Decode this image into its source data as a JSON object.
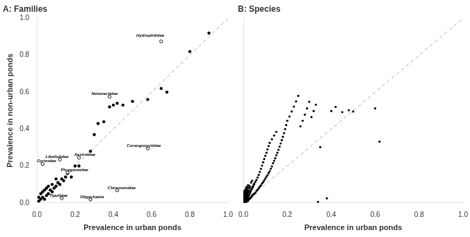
{
  "chart_data": [
    {
      "type": "scatter",
      "title": "A: Families",
      "xlabel": "Prevalence in urban ponds",
      "ylabel": "Prevalence in non-urban ponds",
      "xlim": [
        0,
        1.0
      ],
      "ylim": [
        0,
        1.0
      ],
      "xticks": [
        {
          "value": 0.0,
          "label": "0.0"
        },
        0.2,
        0.4,
        0.6,
        0.8,
        {
          "value": 1.0,
          "label": "1.0"
        }
      ],
      "yticks": [
        {
          "value": 0.0,
          "label": "0.0"
        },
        0.2,
        0.4,
        0.6,
        0.8,
        {
          "value": 1.0,
          "label": "1.0"
        }
      ],
      "grid": false,
      "series": [
        {
          "type": "line",
          "line_style": "dashed",
          "color": "#aaaaaa",
          "x": [
            0,
            1
          ],
          "values": [
            0,
            1
          ]
        },
        {
          "marker": "circle",
          "color": "#000000",
          "x": [
            0.01,
            0.01,
            0.02,
            0.02,
            0.03,
            0.03,
            0.04,
            0.04,
            0.05,
            0.05,
            0.06,
            0.06,
            0.07,
            0.08,
            0.08,
            0.09,
            0.1,
            0.1,
            0.11,
            0.12,
            0.13,
            0.14,
            0.15,
            0.16,
            0.18,
            0.2,
            0.22,
            0.28,
            0.3,
            0.32,
            0.35,
            0.38,
            0.4,
            0.42,
            0.45,
            0.5,
            0.58,
            0.65,
            0.68,
            0.8,
            0.9
          ],
          "values": [
            0.01,
            0.03,
            0.02,
            0.05,
            0.03,
            0.06,
            0.02,
            0.07,
            0.04,
            0.08,
            0.05,
            0.09,
            0.07,
            0.06,
            0.1,
            0.08,
            0.09,
            0.13,
            0.11,
            0.1,
            0.13,
            0.12,
            0.14,
            0.16,
            0.14,
            0.2,
            0.2,
            0.28,
            0.37,
            0.43,
            0.44,
            0.52,
            0.53,
            0.54,
            0.53,
            0.55,
            0.56,
            0.62,
            0.6,
            0.82,
            0.92
          ]
        },
        {
          "marker": "open",
          "color": "#000000",
          "x": [
            0.03,
            0.12,
            0.22,
            0.16,
            0.13,
            0.28,
            0.42,
            0.58,
            0.38,
            0.65
          ],
          "values": [
            0.21,
            0.235,
            0.245,
            0.165,
            0.025,
            0.018,
            0.068,
            0.295,
            0.575,
            0.875
          ]
        }
      ],
      "annotations": [
        {
          "text": "Gyrinidae",
          "x": 0.0,
          "y": 0.215
        },
        {
          "text": "Libellulidae",
          "x": 0.045,
          "y": 0.238
        },
        {
          "text": "Aeshnidae",
          "x": 0.195,
          "y": 0.248
        },
        {
          "text": "Phryganeidae",
          "x": 0.125,
          "y": 0.168
        },
        {
          "text": "Tipulidae",
          "x": 0.065,
          "y": 0.028
        },
        {
          "text": "Oligochaeta",
          "x": 0.225,
          "y": 0.021
        },
        {
          "text": "Chironomidae",
          "x": 0.37,
          "y": 0.071
        },
        {
          "text": "Corangonyctidae",
          "x": 0.47,
          "y": 0.298
        },
        {
          "text": "Notonectidae",
          "x": 0.285,
          "y": 0.578
        },
        {
          "text": "Hydrophilidae",
          "x": 0.52,
          "y": 0.895
        }
      ]
    },
    {
      "type": "scatter",
      "title": "B: Species",
      "xlabel": "Prevalence in urban ponds",
      "xlim": [
        0,
        1.0
      ],
      "ylim": [
        0,
        1.0
      ],
      "xticks": [
        {
          "value": 0.0,
          "label": "0.0"
        },
        0.2,
        0.4,
        0.6,
        0.8,
        {
          "value": 1.0,
          "label": "1.0"
        }
      ],
      "yticks": [
        0.0,
        0.2,
        0.4,
        0.6,
        0.8,
        1.0
      ],
      "tick_labels": "x",
      "grid": false,
      "series": [
        {
          "type": "line",
          "line_style": "dashed",
          "color": "#aaaaaa",
          "x": [
            0,
            1
          ],
          "values": [
            0,
            1
          ]
        },
        {
          "marker": "circle",
          "color": "#000000",
          "x": [
            0.002,
            0.002,
            0.002,
            0.003,
            0.003,
            0.003,
            0.004,
            0.004,
            0.004,
            0.004,
            0.004,
            0.005,
            0.005,
            0.005,
            0.005,
            0.005,
            0.005,
            0.006,
            0.006,
            0.006,
            0.006,
            0.006,
            0.006,
            0.007,
            0.007,
            0.007,
            0.007,
            0.007,
            0.008,
            0.008,
            0.008,
            0.008,
            0.009,
            0.009,
            0.009,
            0.009,
            0.01,
            0.01,
            0.01,
            0.01,
            0.01,
            0.012,
            0.012,
            0.012,
            0.012,
            0.012,
            0.012,
            0.014,
            0.014,
            0.014,
            0.014,
            0.014,
            0.016,
            0.016,
            0.016,
            0.016,
            0.016,
            0.018,
            0.018,
            0.018,
            0.018,
            0.02,
            0.02,
            0.02,
            0.02,
            0.02,
            0.022,
            0.022,
            0.022,
            0.022,
            0.025,
            0.025,
            0.025,
            0.025,
            0.028,
            0.028,
            0.028,
            0.03,
            0.03,
            0.03,
            0.032,
            0.032,
            0.035,
            0.035,
            0.035,
            0.038,
            0.038,
            0.04,
            0.04,
            0.04,
            0.042,
            0.042,
            0.045,
            0.045,
            0.048,
            0.048,
            0.05,
            0.05,
            0.055,
            0.055,
            0.06,
            0.06,
            0.065,
            0.065,
            0.07,
            0.07,
            0.075,
            0.075,
            0.08,
            0.08,
            0.085,
            0.085,
            0.09,
            0.09,
            0.095,
            0.095,
            0.1,
            0.1,
            0.105,
            0.105,
            0.11,
            0.11,
            0.115,
            0.115,
            0.12,
            0.12,
            0.125,
            0.13,
            0.13,
            0.135,
            0.14,
            0.14,
            0.145,
            0.15,
            0.15,
            0.155,
            0.16,
            0.165,
            0.17,
            0.175,
            0.18,
            0.185,
            0.19,
            0.195,
            0.2,
            0.21,
            0.22,
            0.23,
            0.24,
            0.25,
            0.26,
            0.27,
            0.28,
            0.29,
            0.3,
            0.31,
            0.32,
            0.33,
            0.34,
            0.35,
            0.38,
            0.4,
            0.42,
            0.45,
            0.48,
            0.5,
            0.6,
            0.62
          ],
          "values": [
            0.005,
            0.012,
            0.02,
            0.03,
            0.045,
            0.06,
            0.005,
            0.015,
            0.025,
            0.04,
            0.055,
            0.005,
            0.012,
            0.022,
            0.035,
            0.05,
            0.065,
            0.005,
            0.012,
            0.022,
            0.035,
            0.048,
            0.062,
            0.005,
            0.015,
            0.028,
            0.042,
            0.058,
            0.008,
            0.018,
            0.032,
            0.048,
            0.01,
            0.022,
            0.038,
            0.055,
            0.01,
            0.022,
            0.038,
            0.055,
            0.072,
            0.005,
            0.018,
            0.032,
            0.048,
            0.065,
            0.082,
            0.008,
            0.022,
            0.038,
            0.055,
            0.075,
            0.01,
            0.025,
            0.042,
            0.062,
            0.085,
            0.012,
            0.028,
            0.048,
            0.07,
            0.01,
            0.025,
            0.045,
            0.068,
            0.095,
            0.015,
            0.035,
            0.058,
            0.082,
            0.018,
            0.04,
            0.065,
            0.095,
            0.022,
            0.048,
            0.078,
            0.025,
            0.055,
            0.088,
            0.028,
            0.062,
            0.03,
            0.068,
            0.11,
            0.035,
            0.075,
            0.04,
            0.08,
            0.12,
            0.042,
            0.085,
            0.045,
            0.092,
            0.048,
            0.1,
            0.05,
            0.105,
            0.055,
            0.115,
            0.065,
            0.125,
            0.072,
            0.138,
            0.08,
            0.152,
            0.088,
            0.168,
            0.095,
            0.185,
            0.105,
            0.202,
            0.112,
            0.22,
            0.122,
            0.238,
            0.132,
            0.255,
            0.142,
            0.272,
            0.15,
            0.29,
            0.162,
            0.308,
            0.172,
            0.325,
            0.185,
            0.198,
            0.345,
            0.215,
            0.228,
            0.365,
            0.242,
            0.258,
            0.385,
            0.272,
            0.288,
            0.305,
            0.322,
            0.34,
            0.358,
            0.378,
            0.4,
            0.422,
            0.445,
            0.468,
            0.495,
            0.522,
            0.55,
            0.58,
            0.415,
            0.445,
            0.478,
            0.512,
            0.548,
            0.465,
            0.498,
            0.532,
            0.005,
            0.302,
            0.025,
            0.498,
            0.52,
            0.492,
            0.502,
            0.495,
            0.512,
            0.332
          ]
        }
      ]
    }
  ]
}
